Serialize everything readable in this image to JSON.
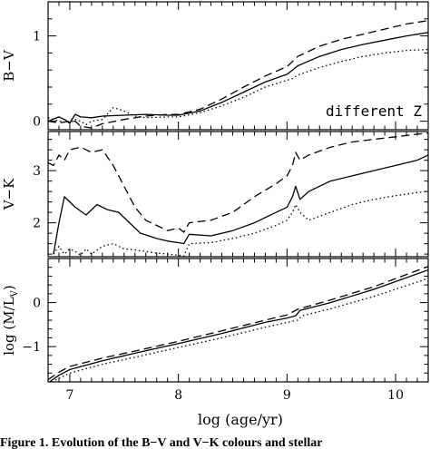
{
  "chart_data": [
    {
      "type": "line",
      "ylabel": "B−V",
      "xlim": [
        6.8,
        10.3
      ],
      "ylim": [
        -0.1,
        1.4
      ],
      "yticks": [
        0,
        1
      ],
      "yticks_minor": [
        0.2,
        0.4,
        0.6,
        0.8,
        1.2
      ],
      "annotation": "different Z",
      "series": [
        {
          "style": "solid",
          "x": [
            6.8,
            6.9,
            6.95,
            7.0,
            7.05,
            7.1,
            7.2,
            7.3,
            7.5,
            7.7,
            7.9,
            8.0,
            8.2,
            8.4,
            8.6,
            8.8,
            9.0,
            9.05,
            9.1,
            9.3,
            9.5,
            9.7,
            9.9,
            10.1,
            10.3
          ],
          "y": [
            0.0,
            0.05,
            0.02,
            -0.02,
            0.08,
            0.05,
            0.04,
            0.06,
            0.07,
            0.08,
            0.07,
            0.07,
            0.12,
            0.22,
            0.34,
            0.46,
            0.55,
            0.6,
            0.65,
            0.76,
            0.84,
            0.9,
            0.95,
            1.0,
            1.04
          ]
        },
        {
          "style": "dashed",
          "x": [
            6.8,
            6.9,
            7.0,
            7.05,
            7.1,
            7.2,
            7.3,
            7.5,
            7.7,
            7.9,
            8.0,
            8.2,
            8.4,
            8.6,
            8.8,
            9.0,
            9.05,
            9.1,
            9.3,
            9.5,
            9.7,
            9.9,
            10.1,
            10.3
          ],
          "y": [
            0.0,
            -0.02,
            0.0,
            0.0,
            -0.06,
            -0.08,
            -0.03,
            0.02,
            0.06,
            0.08,
            0.08,
            0.14,
            0.26,
            0.4,
            0.53,
            0.64,
            0.7,
            0.76,
            0.88,
            0.96,
            1.02,
            1.08,
            1.14,
            1.18
          ]
        },
        {
          "style": "dotted",
          "x": [
            6.8,
            6.9,
            7.0,
            7.05,
            7.1,
            7.15,
            7.2,
            7.3,
            7.4,
            7.5,
            7.6,
            7.7,
            7.9,
            8.0,
            8.2,
            8.4,
            8.6,
            8.8,
            9.0,
            9.05,
            9.1,
            9.3,
            9.5,
            9.7,
            9.9,
            10.1,
            10.3
          ],
          "y": [
            0.04,
            0.0,
            -0.02,
            0.02,
            0.0,
            -0.04,
            0.0,
            0.02,
            0.16,
            0.12,
            0.06,
            0.04,
            0.05,
            0.05,
            0.1,
            0.18,
            0.28,
            0.4,
            0.48,
            0.5,
            0.54,
            0.63,
            0.7,
            0.76,
            0.8,
            0.83,
            0.84
          ]
        }
      ]
    },
    {
      "type": "line",
      "ylabel": "V−K",
      "xlim": [
        6.8,
        10.3
      ],
      "ylim": [
        1.35,
        3.75
      ],
      "yticks": [
        2,
        3
      ],
      "yticks_minor": [
        1.4,
        1.6,
        1.8,
        2.2,
        2.4,
        2.6,
        2.8,
        3.2,
        3.4,
        3.6
      ],
      "series": [
        {
          "style": "solid",
          "x": [
            6.85,
            6.9,
            6.95,
            7.05,
            7.15,
            7.25,
            7.35,
            7.45,
            7.55,
            7.65,
            7.8,
            7.9,
            8.0,
            8.05,
            8.1,
            8.3,
            8.5,
            8.7,
            8.9,
            9.0,
            9.05,
            9.08,
            9.12,
            9.2,
            9.4,
            9.6,
            9.8,
            10.0,
            10.2,
            10.3
          ],
          "y": [
            1.4,
            2.0,
            2.5,
            2.3,
            2.15,
            2.35,
            2.25,
            2.2,
            2.0,
            1.8,
            1.7,
            1.65,
            1.62,
            1.6,
            1.78,
            1.75,
            1.85,
            2.0,
            2.2,
            2.3,
            2.5,
            2.7,
            2.45,
            2.6,
            2.8,
            2.9,
            3.0,
            3.1,
            3.2,
            3.3
          ]
        },
        {
          "style": "dashed",
          "x": [
            6.8,
            6.85,
            6.9,
            6.95,
            7.0,
            7.1,
            7.2,
            7.3,
            7.4,
            7.5,
            7.6,
            7.7,
            7.8,
            7.9,
            8.0,
            8.05,
            8.1,
            8.3,
            8.5,
            8.7,
            8.9,
            9.0,
            9.05,
            9.08,
            9.12,
            9.2,
            9.4,
            9.6,
            9.8,
            10.0,
            10.2,
            10.3
          ],
          "y": [
            3.15,
            3.1,
            3.3,
            3.2,
            3.4,
            3.45,
            3.35,
            3.4,
            3.1,
            2.7,
            2.3,
            2.05,
            1.95,
            1.85,
            1.9,
            1.82,
            2.0,
            2.05,
            2.2,
            2.5,
            2.75,
            2.9,
            3.1,
            3.35,
            3.2,
            3.3,
            3.45,
            3.55,
            3.6,
            3.65,
            3.7,
            3.72
          ]
        },
        {
          "style": "dotted",
          "x": [
            6.85,
            6.9,
            6.95,
            7.0,
            7.05,
            7.1,
            7.15,
            7.2,
            7.3,
            7.4,
            7.5,
            7.6,
            7.7,
            7.8,
            7.9,
            8.0,
            8.05,
            8.1,
            8.3,
            8.5,
            8.7,
            8.9,
            9.0,
            9.05,
            9.08,
            9.12,
            9.2,
            9.4,
            9.6,
            9.8,
            10.0,
            10.2,
            10.3
          ],
          "y": [
            1.4,
            1.55,
            1.4,
            1.5,
            1.45,
            1.38,
            1.5,
            1.4,
            1.55,
            1.6,
            1.5,
            1.48,
            1.45,
            1.42,
            1.4,
            1.38,
            1.36,
            1.6,
            1.62,
            1.7,
            1.8,
            1.95,
            2.05,
            2.2,
            2.35,
            2.2,
            2.05,
            2.2,
            2.35,
            2.45,
            2.52,
            2.58,
            2.6
          ]
        }
      ]
    },
    {
      "type": "line",
      "ylabel": "log (M/L",
      "ylabel_sub": "V",
      "ylabel_close": ")",
      "xlabel": "log (age/yr)",
      "xlim": [
        6.8,
        10.3
      ],
      "ylim": [
        -1.8,
        1.0
      ],
      "xticks": [
        7,
        8,
        9,
        10
      ],
      "xticks_minor": [
        6.8,
        6.9,
        7.1,
        7.2,
        7.3,
        7.4,
        7.5,
        7.6,
        7.7,
        7.8,
        7.9,
        8.1,
        8.2,
        8.3,
        8.4,
        8.5,
        8.6,
        8.7,
        8.8,
        8.9,
        9.1,
        9.2,
        9.3,
        9.4,
        9.5,
        9.6,
        9.7,
        9.8,
        9.9,
        10.1,
        10.2
      ],
      "yticks": [
        -1,
        0
      ],
      "yticks_minor": [
        -1.6,
        -1.4,
        -1.2,
        -0.8,
        -0.6,
        -0.4,
        -0.2,
        0.2,
        0.4,
        0.6,
        0.8
      ],
      "series": [
        {
          "style": "solid",
          "x": [
            6.8,
            6.9,
            7.0,
            7.3,
            7.6,
            8.0,
            8.4,
            8.8,
            9.0,
            9.08,
            9.12,
            9.4,
            9.8,
            10.3
          ],
          "y": [
            -1.82,
            -1.65,
            -1.52,
            -1.32,
            -1.15,
            -0.93,
            -0.7,
            -0.45,
            -0.35,
            -0.3,
            -0.18,
            0.0,
            0.3,
            0.74
          ]
        },
        {
          "style": "dashed",
          "x": [
            6.8,
            6.9,
            7.0,
            7.3,
            7.6,
            8.0,
            8.4,
            8.8,
            9.0,
            9.1,
            9.4,
            9.8,
            10.3
          ],
          "y": [
            -1.75,
            -1.58,
            -1.45,
            -1.26,
            -1.1,
            -0.88,
            -0.64,
            -0.4,
            -0.28,
            -0.15,
            0.06,
            0.36,
            0.82
          ]
        },
        {
          "style": "dotted",
          "x": [
            6.8,
            6.9,
            7.0,
            7.3,
            7.6,
            8.0,
            8.4,
            8.8,
            9.0,
            9.1,
            9.14,
            9.4,
            9.8,
            10.3
          ],
          "y": [
            -1.85,
            -1.72,
            -1.6,
            -1.4,
            -1.24,
            -1.02,
            -0.8,
            -0.56,
            -0.45,
            -0.4,
            -0.3,
            -0.14,
            0.14,
            0.55
          ]
        }
      ]
    }
  ],
  "caption": "Figure 1.  Evolution of the B−V and V−K colours and stellar"
}
